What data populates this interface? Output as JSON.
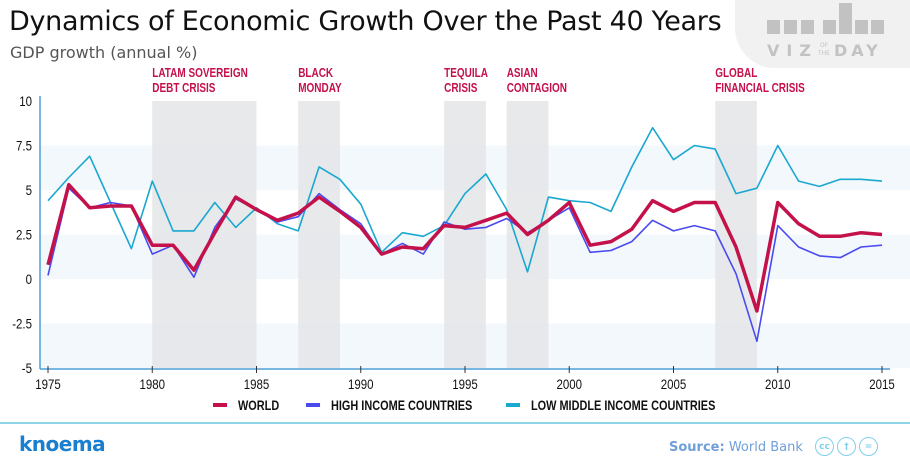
{
  "header": {
    "title": "Dynamics of Economic Growth Over the Past 40 Years",
    "subtitle": "GDP growth (annual %)",
    "badge_top": "VIZ",
    "badge_of": "OF",
    "badge_the": "THE",
    "badge_bottom": "DAY"
  },
  "footer": {
    "logo": "knoema",
    "source_label": "Source:",
    "source_value": "World Bank",
    "license_icons": [
      "cc-icon",
      "attribution-icon",
      "no-derivatives-icon"
    ],
    "license_glyphs": [
      "cc",
      "†",
      "="
    ]
  },
  "colors": {
    "world": "#c4114a",
    "high_income": "#4a4af0",
    "low_middle_income": "#1aa8d0",
    "annotation": "#c4114a",
    "axis": "#4a9fd8",
    "band": "#f3f8fc",
    "crisis_shade": "#e3e5e8"
  },
  "chart_data": {
    "type": "line",
    "title": "Dynamics of Economic Growth Over the Past 40 Years",
    "subtitle": "GDP growth (annual %)",
    "xlabel": "",
    "ylabel": "",
    "xlim": [
      1975,
      2015
    ],
    "ylim": [
      -5,
      10
    ],
    "grid": "alternating horizontal bands",
    "legend_position": "bottom",
    "x_ticks": [
      1975,
      1980,
      1985,
      1990,
      1995,
      2000,
      2005,
      2010,
      2015
    ],
    "x_tick_labels": [
      "1975",
      "1980",
      "1985",
      "1990",
      "1995",
      "2000",
      "2005",
      "2010",
      "2015"
    ],
    "y_ticks": [
      10,
      7.5,
      5,
      2.5,
      0,
      -2.5,
      -5
    ],
    "y_tick_labels": [
      "10",
      "7.5",
      "5",
      "2.5",
      "0",
      "-2.5",
      "-5"
    ],
    "x": [
      1975,
      1976,
      1977,
      1978,
      1979,
      1980,
      1981,
      1982,
      1983,
      1984,
      1985,
      1986,
      1987,
      1988,
      1989,
      1990,
      1991,
      1992,
      1993,
      1994,
      1995,
      1996,
      1997,
      1998,
      1999,
      2000,
      2001,
      2002,
      2003,
      2004,
      2005,
      2006,
      2007,
      2008,
      2009,
      2010,
      2011,
      2012,
      2013,
      2014,
      2015
    ],
    "series": [
      {
        "name": "WORLD",
        "color": "#c4114a",
        "values": [
          0.8,
          5.3,
          4.0,
          4.1,
          4.1,
          1.9,
          1.9,
          0.5,
          2.6,
          4.6,
          3.9,
          3.3,
          3.7,
          4.6,
          3.8,
          2.9,
          1.4,
          1.8,
          1.7,
          3.0,
          2.9,
          3.3,
          3.7,
          2.5,
          3.3,
          4.3,
          1.9,
          2.1,
          2.8,
          4.4,
          3.8,
          4.3,
          4.3,
          1.8,
          -1.8,
          4.3,
          3.1,
          2.4,
          2.4,
          2.6,
          2.5
        ]
      },
      {
        "name": "HIGH INCOME COUNTRIES",
        "color": "#4a4af0",
        "values": [
          0.2,
          5.1,
          4.0,
          4.3,
          4.1,
          1.4,
          1.9,
          0.1,
          2.9,
          4.5,
          3.9,
          3.2,
          3.5,
          4.8,
          3.9,
          3.1,
          1.4,
          2.0,
          1.4,
          3.2,
          2.8,
          2.9,
          3.4,
          2.6,
          3.3,
          4.0,
          1.5,
          1.6,
          2.1,
          3.3,
          2.7,
          3.0,
          2.7,
          0.3,
          -3.5,
          3.0,
          1.8,
          1.3,
          1.2,
          1.8,
          1.9
        ]
      },
      {
        "name": "LOW MIDDLE INCOME COUNTRIES",
        "color": "#1aa8d0",
        "values": [
          4.4,
          5.7,
          6.9,
          4.3,
          1.7,
          5.5,
          2.7,
          2.7,
          4.3,
          2.9,
          4.0,
          3.1,
          2.7,
          6.3,
          5.6,
          4.2,
          1.5,
          2.6,
          2.4,
          3.0,
          4.8,
          5.9,
          3.9,
          0.4,
          4.6,
          4.4,
          4.3,
          3.8,
          6.3,
          8.5,
          6.7,
          7.5,
          7.3,
          4.8,
          5.1,
          7.5,
          5.5,
          5.2,
          5.6,
          5.6,
          5.5
        ]
      }
    ],
    "annotations": [
      {
        "label_lines": [
          "LATAM SOVEREIGN",
          "DEBT CRISIS"
        ],
        "x_start": 1980,
        "x_end": 1985
      },
      {
        "label_lines": [
          "BLACK",
          "MONDAY"
        ],
        "x_start": 1987,
        "x_end": 1989
      },
      {
        "label_lines": [
          "TEQUILA",
          "CRISIS"
        ],
        "x_start": 1994,
        "x_end": 1996
      },
      {
        "label_lines": [
          "ASIAN",
          "CONTAGION"
        ],
        "x_start": 1997,
        "x_end": 1999
      },
      {
        "label_lines": [
          "GLOBAL",
          "FINANCIAL CRISIS"
        ],
        "x_start": 2007,
        "x_end": 2009
      }
    ]
  },
  "legend": {
    "items": [
      {
        "label": "WORLD",
        "color": "#c4114a"
      },
      {
        "label": "HIGH INCOME COUNTRIES",
        "color": "#4a4af0"
      },
      {
        "label": "LOW MIDDLE INCOME COUNTRIES",
        "color": "#1aa8d0"
      }
    ]
  }
}
